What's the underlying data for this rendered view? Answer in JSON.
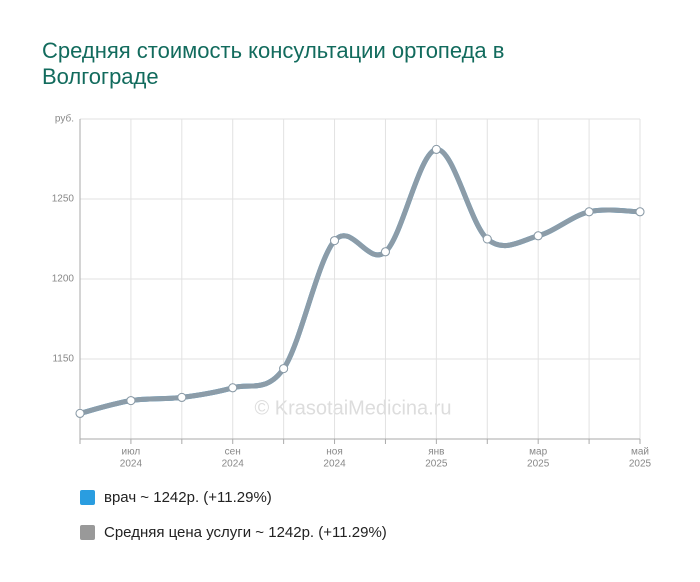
{
  "chart_data": {
    "type": "line",
    "title_lines": [
      "Средняя стоимость консультации ортопеда в",
      "Волгограде"
    ],
    "watermark": "© KrasotaiMedicina.ru",
    "categories": [
      null,
      "июл",
      null,
      "сен",
      null,
      "ноя",
      null,
      "янв",
      null,
      "мар",
      null,
      "май"
    ],
    "category_years": [
      null,
      "2024",
      null,
      "2024",
      null,
      "2024",
      null,
      "2025",
      null,
      "2025",
      null,
      "2025"
    ],
    "series": [
      {
        "name": "врач ~ 1242р. (+11.29%)",
        "color": "#2a9de0",
        "values": [
          1116,
          1124,
          1126,
          1132,
          1144,
          1224,
          1217,
          1281,
          1225,
          1227,
          1242,
          1242
        ]
      },
      {
        "name": "Средняя цена услуги ~ 1242р. (+11.29%)",
        "color": "#8c9ca8",
        "legend_color": "#999999",
        "values": [
          1116,
          1124,
          1126,
          1132,
          1144,
          1224,
          1217,
          1281,
          1225,
          1227,
          1242,
          1242
        ]
      }
    ],
    "ylim": [
      1100,
      1300
    ],
    "yticks": [
      1150,
      1200,
      1250,
      {
        "value": 1300,
        "label": "руб."
      }
    ],
    "grid": true
  }
}
